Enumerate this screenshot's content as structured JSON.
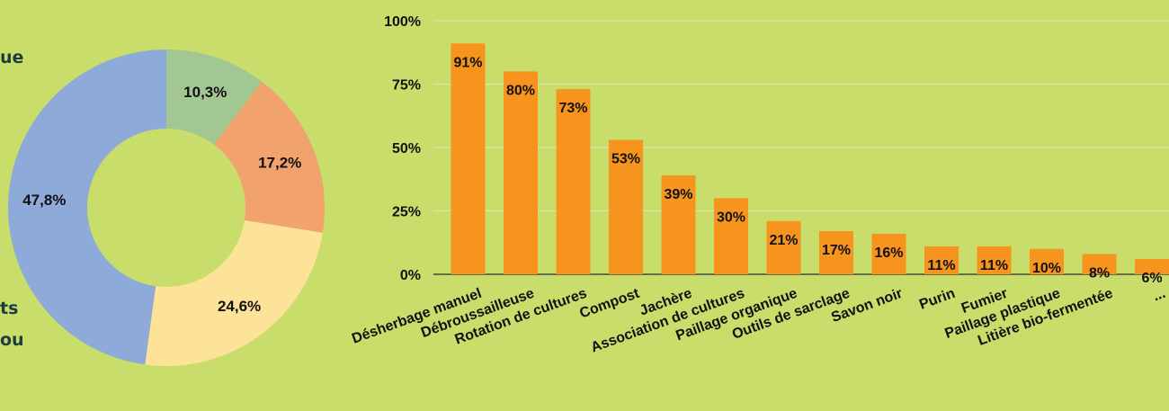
{
  "left_legend_fragments": [
    "ue",
    "ts",
    "ou"
  ],
  "chart_data": [
    {
      "type": "pie",
      "style": "donut",
      "values": [
        10.3,
        17.2,
        24.6,
        47.8
      ],
      "labels": [
        "10,3%",
        "17,2%",
        "24,6%",
        "47,8%"
      ],
      "colors": [
        "#a2c793",
        "#f2a26c",
        "#fce398",
        "#8eaad8"
      ],
      "title": "",
      "legend": "left (cropped)"
    },
    {
      "type": "bar",
      "categories": [
        "Désherbage manuel",
        "Débroussailleuse",
        "Rotation de cultures",
        "Compost",
        "Jachère",
        "Association de cultures",
        "Paillage organique",
        "Outils de sarclage",
        "Savon noir",
        "Purin",
        "Fumier",
        "Paillage plastique",
        "Litière bio-fermentée",
        "..."
      ],
      "values": [
        91,
        80,
        73,
        53,
        39,
        30,
        21,
        17,
        16,
        11,
        11,
        10,
        8,
        6
      ],
      "value_labels": [
        "91%",
        "80%",
        "73%",
        "53%",
        "39%",
        "30%",
        "21%",
        "17%",
        "16%",
        "11%",
        "11%",
        "10%",
        "8%",
        "6%"
      ],
      "yticks": [
        "0%",
        "25%",
        "50%",
        "75%",
        "100%"
      ],
      "ylim": [
        0,
        100
      ],
      "bar_color": "#f7941d",
      "grid": true,
      "title": "",
      "xlabel": "",
      "ylabel": ""
    }
  ]
}
